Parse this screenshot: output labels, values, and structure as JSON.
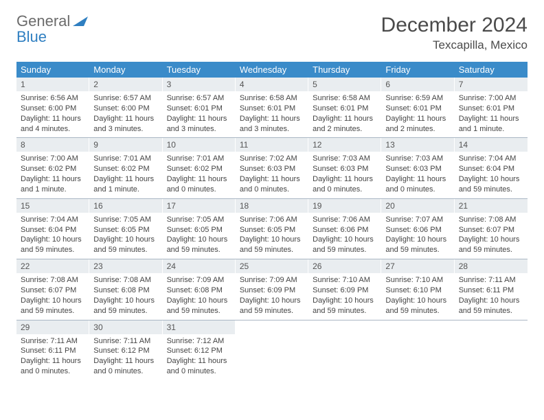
{
  "logo": {
    "general": "General",
    "blue": "Blue"
  },
  "title": "December 2024",
  "location": "Texcapilla, Mexico",
  "colors": {
    "header_bg": "#3a8bc9",
    "daynum_bg": "#e9edf0",
    "border": "#aab7c4"
  },
  "dayNames": [
    "Sunday",
    "Monday",
    "Tuesday",
    "Wednesday",
    "Thursday",
    "Friday",
    "Saturday"
  ],
  "days": [
    {
      "n": 1,
      "sr": "6:56 AM",
      "ss": "6:00 PM",
      "dl": "11 hours and 4 minutes."
    },
    {
      "n": 2,
      "sr": "6:57 AM",
      "ss": "6:00 PM",
      "dl": "11 hours and 3 minutes."
    },
    {
      "n": 3,
      "sr": "6:57 AM",
      "ss": "6:01 PM",
      "dl": "11 hours and 3 minutes."
    },
    {
      "n": 4,
      "sr": "6:58 AM",
      "ss": "6:01 PM",
      "dl": "11 hours and 3 minutes."
    },
    {
      "n": 5,
      "sr": "6:58 AM",
      "ss": "6:01 PM",
      "dl": "11 hours and 2 minutes."
    },
    {
      "n": 6,
      "sr": "6:59 AM",
      "ss": "6:01 PM",
      "dl": "11 hours and 2 minutes."
    },
    {
      "n": 7,
      "sr": "7:00 AM",
      "ss": "6:01 PM",
      "dl": "11 hours and 1 minute."
    },
    {
      "n": 8,
      "sr": "7:00 AM",
      "ss": "6:02 PM",
      "dl": "11 hours and 1 minute."
    },
    {
      "n": 9,
      "sr": "7:01 AM",
      "ss": "6:02 PM",
      "dl": "11 hours and 1 minute."
    },
    {
      "n": 10,
      "sr": "7:01 AM",
      "ss": "6:02 PM",
      "dl": "11 hours and 0 minutes."
    },
    {
      "n": 11,
      "sr": "7:02 AM",
      "ss": "6:03 PM",
      "dl": "11 hours and 0 minutes."
    },
    {
      "n": 12,
      "sr": "7:03 AM",
      "ss": "6:03 PM",
      "dl": "11 hours and 0 minutes."
    },
    {
      "n": 13,
      "sr": "7:03 AM",
      "ss": "6:03 PM",
      "dl": "11 hours and 0 minutes."
    },
    {
      "n": 14,
      "sr": "7:04 AM",
      "ss": "6:04 PM",
      "dl": "10 hours and 59 minutes."
    },
    {
      "n": 15,
      "sr": "7:04 AM",
      "ss": "6:04 PM",
      "dl": "10 hours and 59 minutes."
    },
    {
      "n": 16,
      "sr": "7:05 AM",
      "ss": "6:05 PM",
      "dl": "10 hours and 59 minutes."
    },
    {
      "n": 17,
      "sr": "7:05 AM",
      "ss": "6:05 PM",
      "dl": "10 hours and 59 minutes."
    },
    {
      "n": 18,
      "sr": "7:06 AM",
      "ss": "6:05 PM",
      "dl": "10 hours and 59 minutes."
    },
    {
      "n": 19,
      "sr": "7:06 AM",
      "ss": "6:06 PM",
      "dl": "10 hours and 59 minutes."
    },
    {
      "n": 20,
      "sr": "7:07 AM",
      "ss": "6:06 PM",
      "dl": "10 hours and 59 minutes."
    },
    {
      "n": 21,
      "sr": "7:08 AM",
      "ss": "6:07 PM",
      "dl": "10 hours and 59 minutes."
    },
    {
      "n": 22,
      "sr": "7:08 AM",
      "ss": "6:07 PM",
      "dl": "10 hours and 59 minutes."
    },
    {
      "n": 23,
      "sr": "7:08 AM",
      "ss": "6:08 PM",
      "dl": "10 hours and 59 minutes."
    },
    {
      "n": 24,
      "sr": "7:09 AM",
      "ss": "6:08 PM",
      "dl": "10 hours and 59 minutes."
    },
    {
      "n": 25,
      "sr": "7:09 AM",
      "ss": "6:09 PM",
      "dl": "10 hours and 59 minutes."
    },
    {
      "n": 26,
      "sr": "7:10 AM",
      "ss": "6:09 PM",
      "dl": "10 hours and 59 minutes."
    },
    {
      "n": 27,
      "sr": "7:10 AM",
      "ss": "6:10 PM",
      "dl": "10 hours and 59 minutes."
    },
    {
      "n": 28,
      "sr": "7:11 AM",
      "ss": "6:11 PM",
      "dl": "10 hours and 59 minutes."
    },
    {
      "n": 29,
      "sr": "7:11 AM",
      "ss": "6:11 PM",
      "dl": "11 hours and 0 minutes."
    },
    {
      "n": 30,
      "sr": "7:11 AM",
      "ss": "6:12 PM",
      "dl": "11 hours and 0 minutes."
    },
    {
      "n": 31,
      "sr": "7:12 AM",
      "ss": "6:12 PM",
      "dl": "11 hours and 0 minutes."
    }
  ],
  "labels": {
    "sunrise": "Sunrise:",
    "sunset": "Sunset:",
    "daylight": "Daylight:"
  }
}
